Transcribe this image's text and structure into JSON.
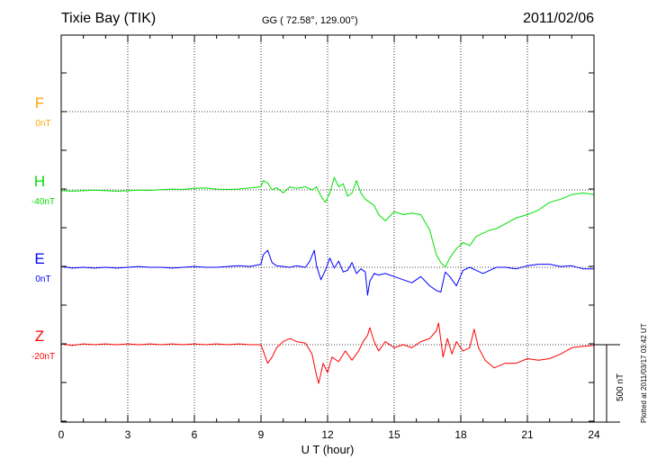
{
  "header": {
    "station": "Tixie Bay (TIK)",
    "coords": "GG ( 72.58°, 129.00°)",
    "date": "2011/02/06"
  },
  "plot_stamp": "Plotted at 2011/03/17 03:42 UT",
  "scale_bar_label": "500 nT",
  "colors": {
    "F": "#ffa500",
    "H": "#00e000",
    "E": "#0000ff",
    "Z": "#ff0000"
  },
  "chart_data": {
    "type": "line",
    "title": "Tixie Bay (TIK)",
    "xlabel": "U T (hour)",
    "ylabel": "",
    "xlim": [
      0,
      24
    ],
    "x_ticks": [
      0,
      3,
      6,
      9,
      12,
      15,
      18,
      21,
      24
    ],
    "x_tick_labels": [
      "0",
      "3",
      "6",
      "9",
      "12",
      "15",
      "18",
      "21",
      "24"
    ],
    "scale_bar_nT": 500,
    "grid": true,
    "series": [
      {
        "name": "F",
        "baseline": "0nT",
        "color": "#ffa500",
        "x": [],
        "y": []
      },
      {
        "name": "H",
        "baseline": "-40nT",
        "color": "#00e000",
        "x": [
          0,
          0.5,
          1,
          1.5,
          2,
          2.5,
          3,
          3.5,
          4,
          4.5,
          5,
          5.5,
          6,
          6.5,
          7,
          7.5,
          8,
          8.5,
          9,
          9.1,
          9.3,
          9.5,
          9.7,
          10,
          10.3,
          10.6,
          11,
          11.3,
          11.5,
          11.7,
          11.9,
          12.1,
          12.3,
          12.5,
          12.7,
          12.9,
          13.1,
          13.3,
          13.5,
          13.7,
          13.9,
          14.1,
          14.3,
          14.6,
          15,
          15.4,
          15.8,
          16.2,
          16.6,
          16.9,
          17.1,
          17.3,
          17.5,
          17.8,
          18.1,
          18.4,
          18.7,
          19,
          19.3,
          19.6,
          20,
          20.5,
          21,
          21.5,
          22,
          22.5,
          23,
          23.5,
          24
        ],
        "y": [
          -5,
          -8,
          -5,
          -2,
          -5,
          -8,
          -6,
          -2,
          -3,
          2,
          5,
          3,
          10,
          12,
          5,
          3,
          6,
          12,
          20,
          60,
          45,
          0,
          15,
          -20,
          20,
          10,
          20,
          0,
          20,
          -40,
          -80,
          -20,
          80,
          20,
          40,
          -40,
          -20,
          60,
          -20,
          -60,
          -80,
          -100,
          -160,
          -200,
          -140,
          -160,
          -150,
          -160,
          -260,
          -420,
          -470,
          -500,
          -440,
          -380,
          -340,
          -360,
          -300,
          -280,
          -260,
          -250,
          -220,
          -180,
          -160,
          -130,
          -80,
          -60,
          -30,
          -20,
          -30
        ]
      },
      {
        "name": "E",
        "baseline": "0nT",
        "color": "#0000ff",
        "x": [
          0,
          0.5,
          1,
          1.5,
          2,
          2.5,
          3,
          3.5,
          4,
          4.5,
          5,
          5.5,
          6,
          6.5,
          7,
          7.5,
          8,
          8.5,
          9,
          9.1,
          9.3,
          9.5,
          9.7,
          10,
          10.3,
          10.6,
          11,
          11.2,
          11.4,
          11.5,
          11.7,
          11.9,
          12.1,
          12.3,
          12.5,
          12.7,
          12.9,
          13.1,
          13.3,
          13.5,
          13.7,
          13.8,
          13.9,
          14.1,
          14.3,
          14.6,
          15,
          15.4,
          15.8,
          16.2,
          16.6,
          16.9,
          17.1,
          17.3,
          17.5,
          17.8,
          18.1,
          18.4,
          18.7,
          19,
          19.3,
          19.6,
          20,
          20.5,
          21,
          21.5,
          22,
          22.5,
          23,
          23.5,
          24
        ],
        "y": [
          5,
          -5,
          0,
          -5,
          0,
          -5,
          0,
          5,
          0,
          0,
          -5,
          0,
          5,
          0,
          0,
          5,
          10,
          5,
          20,
          80,
          110,
          30,
          10,
          5,
          0,
          10,
          0,
          40,
          110,
          10,
          -80,
          -20,
          60,
          -5,
          40,
          -30,
          -20,
          30,
          -40,
          -10,
          -30,
          -180,
          -90,
          -40,
          -50,
          -40,
          -60,
          -80,
          -100,
          -60,
          -120,
          -150,
          -160,
          -30,
          -60,
          -120,
          -20,
          0,
          -20,
          -40,
          -20,
          0,
          0,
          -10,
          10,
          20,
          20,
          5,
          10,
          -10,
          -10
        ]
      },
      {
        "name": "Z",
        "baseline": "-20nT",
        "color": "#ff0000",
        "x": [
          0,
          0.5,
          1,
          1.5,
          2,
          2.5,
          3,
          3.5,
          4,
          4.5,
          5,
          5.5,
          6,
          6.5,
          7,
          7.5,
          8,
          8.5,
          9,
          9.1,
          9.3,
          9.5,
          9.7,
          10,
          10.3,
          10.6,
          11,
          11.3,
          11.5,
          11.6,
          11.8,
          12,
          12.2,
          12.5,
          12.8,
          13.1,
          13.4,
          13.6,
          13.8,
          13.9,
          14.1,
          14.3,
          14.6,
          15,
          15.4,
          15.8,
          16.2,
          16.6,
          16.9,
          17,
          17.2,
          17.4,
          17.6,
          17.8,
          18.1,
          18.4,
          18.6,
          18.8,
          19.1,
          19.5,
          20,
          20.5,
          21,
          21.5,
          22,
          22.5,
          23,
          23.5,
          24
        ],
        "y": [
          5,
          -5,
          5,
          0,
          5,
          0,
          5,
          0,
          5,
          0,
          5,
          0,
          5,
          0,
          5,
          0,
          5,
          0,
          0,
          -40,
          -120,
          -80,
          -20,
          20,
          40,
          20,
          10,
          -60,
          -200,
          -250,
          -120,
          -180,
          -80,
          -110,
          -40,
          -100,
          -40,
          20,
          60,
          110,
          20,
          -40,
          20,
          -20,
          0,
          -20,
          20,
          40,
          90,
          140,
          -80,
          40,
          -60,
          20,
          -40,
          -20,
          100,
          -20,
          -100,
          -150,
          -120,
          -120,
          -90,
          -100,
          -90,
          -60,
          -20,
          -10,
          -5
        ]
      }
    ]
  }
}
